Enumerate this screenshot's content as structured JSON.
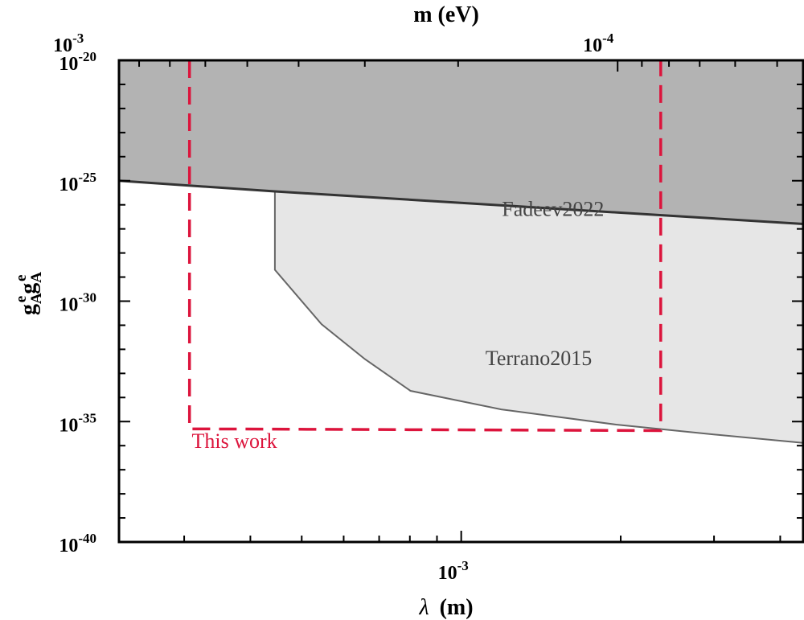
{
  "chart_data": {
    "type": "area",
    "x_axis": {
      "quantity": "λ",
      "unit": "(m)",
      "scale": "log",
      "range": [
        0.000226,
        0.00442
      ],
      "tick_labels": [
        {
          "value": 0.001,
          "base": "10",
          "exp": "-3"
        }
      ]
    },
    "x2_axis": {
      "label": "m (eV)",
      "scale": "log",
      "tick_labels": [
        {
          "value": 0.001,
          "base": "10",
          "exp": "-3"
        },
        {
          "value": 0.0001,
          "base": "10",
          "exp": "-4"
        }
      ]
    },
    "y_axis": {
      "label_base": "g",
      "label_sub": "A",
      "label_sup": "e",
      "scale": "log",
      "range": [
        1e-40,
        1e-20
      ],
      "tick_labels": [
        {
          "value": 1e-20,
          "base": "10",
          "exp": "-20"
        },
        {
          "value": 1e-25,
          "base": "10",
          "exp": "-25"
        },
        {
          "value": 1e-30,
          "base": "10",
          "exp": "-30"
        },
        {
          "value": 1e-35,
          "base": "10",
          "exp": "-35"
        },
        {
          "value": 1e-40,
          "base": "10",
          "exp": "-40"
        }
      ]
    },
    "series": [
      {
        "name": "Fadeev2022",
        "style": "excluded-region",
        "fill": "#b3b3b3",
        "line": "#333333",
        "points": [
          [
            0.000226,
            1e-25
          ],
          [
            0.000445,
            3.6e-26
          ],
          [
            0.00442,
            1.6e-27
          ]
        ],
        "label_at": [
          0.00149,
          3.5e-27
        ]
      },
      {
        "name": "Terrano2015",
        "style": "excluded-region",
        "fill": "#e6e6e6",
        "line": "#666666",
        "points": [
          [
            0.000445,
            3.6e-26
          ],
          [
            0.000445,
            2e-29
          ],
          [
            0.000545,
            1.1e-31
          ],
          [
            0.000658,
            3.9e-33
          ],
          [
            0.000802,
            1.9e-34
          ],
          [
            0.00119,
            3.2e-35
          ],
          [
            0.00196,
            7.5e-36
          ],
          [
            0.00311,
            2.7e-36
          ],
          [
            0.00442,
            1.3e-36
          ]
        ],
        "label_at": [
          0.0014,
          2.2e-33
        ]
      },
      {
        "name": "This work",
        "style": "dashed-boundary",
        "line": "#dc143c",
        "points": [
          [
            0.000307,
            1e-20
          ],
          [
            0.000307,
            5e-36
          ],
          [
            0.00238,
            4.2e-36
          ],
          [
            0.00238,
            1e-20
          ]
        ],
        "label_at": [
          0.00031,
          8e-37
        ]
      }
    ]
  }
}
